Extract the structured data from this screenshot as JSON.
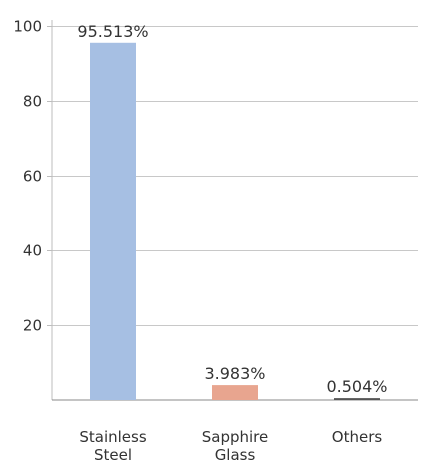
{
  "chart_data": {
    "type": "bar",
    "title": "",
    "xlabel": "",
    "ylabel": "",
    "categories": [
      [
        "Stainless",
        "Steel"
      ],
      [
        "Sapphire",
        "Glass"
      ],
      [
        "Others"
      ]
    ],
    "values": [
      95.513,
      3.983,
      0.504
    ],
    "data_labels": [
      "95.513%",
      "3.983%",
      "0.504%"
    ],
    "colors": [
      "#a6bfe3",
      "#e8a58f",
      "#555555"
    ],
    "ylim": [
      0,
      100
    ],
    "yticks": [
      20,
      40,
      60,
      80,
      100
    ],
    "grid": true,
    "grid_color": "#c8c8c8",
    "legend": "none"
  }
}
